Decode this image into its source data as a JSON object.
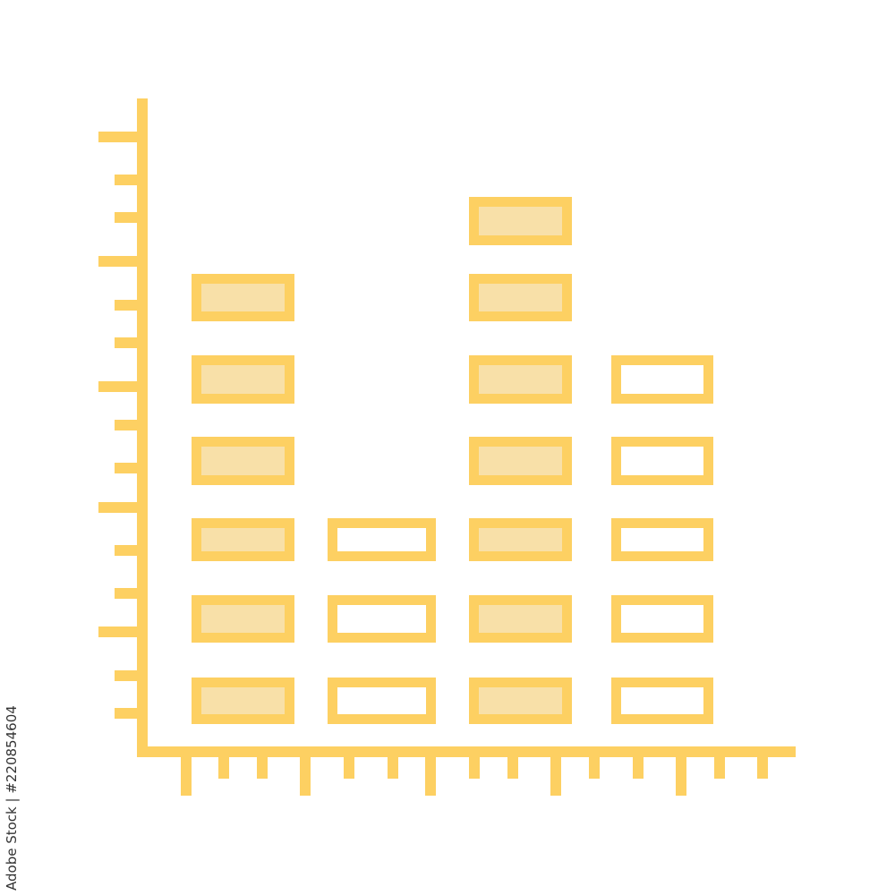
{
  "chart_data": {
    "type": "bar",
    "title": "",
    "xlabel": "",
    "ylabel": "",
    "categories": [
      "",
      "",
      "",
      ""
    ],
    "values": [
      6,
      3,
      7,
      5
    ],
    "ylim": [
      0,
      7
    ],
    "grid": false,
    "style": "stacked-blocks-icon",
    "filled": [
      true,
      false,
      true,
      false
    ]
  },
  "colors": {
    "stroke": "#FDD062",
    "fill": "#F8E0A8",
    "background": "#FFFFFF"
  },
  "watermark": {
    "text": "Adobe Stock | #220854604"
  }
}
